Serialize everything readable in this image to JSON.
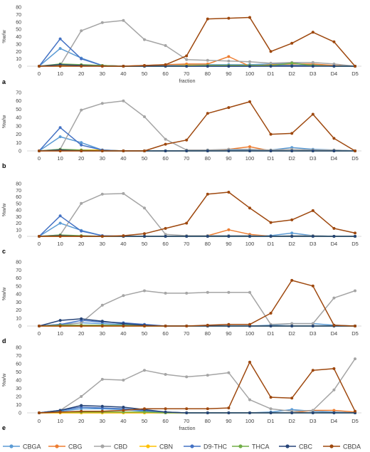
{
  "colors": {
    "CBGA": "#5b9bd5",
    "CBG": "#ed7d31",
    "CBD": "#a5a5a5",
    "CBN": "#ffc000",
    "D9-THC": "#4472c4",
    "THCA": "#70ad47",
    "CBC": "#264478",
    "CBDA": "#9e480e",
    "axis": "#d9d9d9",
    "text": "#404040"
  },
  "chart_data": [
    {
      "type": "line",
      "panel_label": "a",
      "xlabel": "fraction",
      "ylabel": "%w/w",
      "ylim": [
        0,
        80
      ],
      "yticks": [
        0,
        10,
        20,
        30,
        40,
        50,
        60,
        70,
        80
      ],
      "grid": false,
      "categories": [
        "0",
        "10",
        "20",
        "30",
        "40",
        "50",
        "60",
        "70",
        "80",
        "90",
        "100",
        "D1",
        "D2",
        "D3",
        "D4",
        "D5"
      ],
      "series": [
        {
          "name": "CBGA",
          "values": [
            0,
            24,
            11,
            1,
            0,
            0,
            1,
            2,
            2,
            2,
            2,
            3,
            4,
            2,
            1,
            0
          ]
        },
        {
          "name": "CBG",
          "values": [
            0,
            1,
            1,
            1,
            0,
            1,
            2,
            3,
            3,
            13,
            0,
            2,
            3,
            3,
            1,
            0
          ]
        },
        {
          "name": "CBD",
          "values": [
            0,
            1,
            48,
            59,
            62,
            36,
            28,
            9,
            8,
            7,
            6,
            4,
            5,
            5,
            3,
            0
          ]
        },
        {
          "name": "CBN",
          "values": [
            0,
            1,
            1,
            0,
            0,
            0,
            0,
            1,
            1,
            1,
            1,
            1,
            1,
            1,
            0,
            0
          ]
        },
        {
          "name": "D9-THC",
          "values": [
            0,
            37,
            10,
            1,
            0,
            0,
            0,
            0,
            0,
            0,
            0,
            1,
            1,
            1,
            0,
            0
          ]
        },
        {
          "name": "THCA",
          "values": [
            0,
            3,
            2,
            1,
            0,
            0,
            0,
            0,
            1,
            1,
            1,
            1,
            4,
            1,
            0,
            0
          ]
        },
        {
          "name": "CBC",
          "values": [
            0,
            2,
            1,
            0,
            0,
            0,
            0,
            0,
            0,
            0,
            0,
            0,
            0,
            0,
            0,
            0
          ]
        },
        {
          "name": "CBDA",
          "values": [
            0,
            0,
            0,
            0,
            0,
            1,
            2,
            14,
            64,
            65,
            66,
            20,
            31,
            46,
            33,
            0
          ]
        }
      ]
    },
    {
      "type": "line",
      "panel_label": "b",
      "ylabel": "%w/w",
      "ylim": [
        0,
        70
      ],
      "yticks": [
        0,
        10,
        20,
        30,
        40,
        50,
        60,
        70
      ],
      "grid": false,
      "categories": [
        "0",
        "10",
        "20",
        "30",
        "40",
        "50",
        "60",
        "70",
        "80",
        "90",
        "100",
        "D1",
        "D2",
        "D3",
        "D4",
        "D5"
      ],
      "series": [
        {
          "name": "CBGA",
          "values": [
            0,
            17,
            10,
            1,
            0,
            0,
            0,
            0,
            1,
            1,
            1,
            1,
            4,
            2,
            1,
            0
          ]
        },
        {
          "name": "CBG",
          "values": [
            0,
            0,
            0,
            0,
            0,
            0,
            0,
            0,
            0,
            2,
            5,
            0,
            0,
            0,
            0,
            0
          ]
        },
        {
          "name": "CBD",
          "values": [
            0,
            2,
            49,
            57,
            60,
            41,
            14,
            1,
            1,
            2,
            2,
            1,
            2,
            1,
            1,
            0
          ]
        },
        {
          "name": "CBN",
          "values": [
            0,
            1,
            1,
            1,
            0,
            0,
            0,
            0,
            0,
            0,
            0,
            0,
            0,
            0,
            0,
            0
          ]
        },
        {
          "name": "D9-THC",
          "values": [
            0,
            28,
            7,
            1,
            0,
            0,
            0,
            0,
            0,
            0,
            0,
            0,
            0,
            0,
            0,
            0
          ]
        },
        {
          "name": "THCA",
          "values": [
            0,
            2,
            1,
            0,
            0,
            0,
            0,
            0,
            0,
            0,
            0,
            0,
            0,
            0,
            0,
            0
          ]
        },
        {
          "name": "CBC",
          "values": [
            0,
            1,
            0,
            0,
            0,
            0,
            0,
            0,
            0,
            0,
            0,
            0,
            0,
            0,
            0,
            0
          ]
        },
        {
          "name": "CBDA",
          "values": [
            0,
            0,
            0,
            0,
            0,
            0,
            8,
            13,
            45,
            52,
            59,
            20,
            21,
            44,
            15,
            0
          ]
        }
      ]
    },
    {
      "type": "line",
      "panel_label": "c",
      "ylabel": "%w/w",
      "ylim": [
        0,
        80
      ],
      "yticks": [
        0,
        10,
        20,
        30,
        40,
        50,
        60,
        70,
        80
      ],
      "grid": false,
      "categories": [
        "0",
        "10",
        "20",
        "30",
        "40",
        "50",
        "60",
        "70",
        "80",
        "90",
        "100",
        "D1",
        "D2",
        "D3",
        "D4",
        "D5"
      ],
      "series": [
        {
          "name": "CBGA",
          "values": [
            0,
            20,
            9,
            1,
            0,
            0,
            0,
            0,
            1,
            1,
            1,
            1,
            5,
            1,
            0,
            0
          ]
        },
        {
          "name": "CBG",
          "values": [
            0,
            0,
            0,
            0,
            0,
            0,
            0,
            0,
            1,
            10,
            3,
            0,
            0,
            0,
            0,
            0
          ]
        },
        {
          "name": "CBD",
          "values": [
            0,
            2,
            50,
            64,
            65,
            43,
            3,
            1,
            1,
            1,
            1,
            0,
            1,
            1,
            0,
            0
          ]
        },
        {
          "name": "CBN",
          "values": [
            0,
            0,
            0,
            0,
            0,
            0,
            0,
            0,
            0,
            0,
            0,
            0,
            0,
            0,
            0,
            0
          ]
        },
        {
          "name": "D9-THC",
          "values": [
            0,
            31,
            8,
            1,
            0,
            0,
            0,
            0,
            0,
            0,
            0,
            0,
            0,
            0,
            0,
            0
          ]
        },
        {
          "name": "THCA",
          "values": [
            0,
            2,
            1,
            0,
            0,
            0,
            0,
            0,
            0,
            0,
            0,
            0,
            0,
            0,
            0,
            0
          ]
        },
        {
          "name": "CBC",
          "values": [
            0,
            1,
            0,
            0,
            0,
            0,
            0,
            0,
            0,
            0,
            0,
            0,
            0,
            0,
            0,
            0
          ]
        },
        {
          "name": "CBDA",
          "values": [
            0,
            0,
            0,
            0,
            1,
            4,
            12,
            20,
            64,
            67,
            43,
            21,
            25,
            39,
            12,
            5
          ]
        }
      ]
    },
    {
      "type": "line",
      "panel_label": "d",
      "ylabel": "%w/w",
      "ylim": [
        0,
        80
      ],
      "yticks": [
        0,
        10,
        20,
        30,
        40,
        50,
        60,
        70,
        80
      ],
      "grid": false,
      "categories": [
        "0",
        "10",
        "20",
        "30",
        "40",
        "50",
        "60",
        "70",
        "80",
        "90",
        "100",
        "D1",
        "D2",
        "D3",
        "D4",
        "D5"
      ],
      "series": [
        {
          "name": "CBGA",
          "values": [
            0,
            2,
            4,
            3,
            2,
            1,
            0,
            0,
            0,
            0,
            0,
            1,
            3,
            3,
            1,
            0
          ]
        },
        {
          "name": "CBG",
          "values": [
            0,
            0,
            0,
            0,
            0,
            0,
            0,
            0,
            0,
            0,
            0,
            0,
            0,
            0,
            0,
            0
          ]
        },
        {
          "name": "CBD",
          "values": [
            0,
            1,
            4,
            26,
            38,
            44,
            41,
            41,
            42,
            42,
            42,
            2,
            3,
            3,
            35,
            44
          ]
        },
        {
          "name": "CBN",
          "values": [
            0,
            0,
            0,
            0,
            0,
            0,
            0,
            0,
            0,
            0,
            0,
            0,
            0,
            0,
            0,
            0
          ]
        },
        {
          "name": "D9-THC",
          "values": [
            0,
            2,
            7,
            5,
            4,
            2,
            0,
            0,
            0,
            0,
            0,
            0,
            0,
            0,
            0,
            0
          ]
        },
        {
          "name": "THCA",
          "values": [
            0,
            1,
            1,
            1,
            1,
            0,
            0,
            0,
            0,
            0,
            0,
            0,
            0,
            0,
            0,
            0
          ]
        },
        {
          "name": "CBC",
          "values": [
            0,
            7,
            9,
            6,
            3,
            1,
            0,
            0,
            0,
            0,
            0,
            0,
            0,
            0,
            0,
            0
          ]
        },
        {
          "name": "CBDA",
          "values": [
            0,
            0,
            0,
            0,
            0,
            0,
            0,
            0,
            1,
            2,
            2,
            16,
            57,
            50,
            1,
            0
          ]
        }
      ]
    },
    {
      "type": "line",
      "panel_label": "e",
      "xlabel": "fraction",
      "ylabel": "%w/w",
      "ylim": [
        0,
        80
      ],
      "yticks": [
        0,
        10,
        20,
        30,
        40,
        50,
        60,
        70,
        80
      ],
      "grid": false,
      "categories": [
        "0",
        "10",
        "20",
        "30",
        "40",
        "50",
        "60",
        "70",
        "80",
        "90",
        "100",
        "D1",
        "D2",
        "D3",
        "D4",
        "D5"
      ],
      "series": [
        {
          "name": "CBGA",
          "values": [
            0,
            2,
            5,
            5,
            4,
            2,
            1,
            0,
            0,
            0,
            0,
            1,
            4,
            2,
            1,
            0
          ]
        },
        {
          "name": "CBG",
          "values": [
            0,
            0,
            0,
            0,
            0,
            0,
            0,
            0,
            0,
            0,
            0,
            0,
            0,
            3,
            3,
            1
          ]
        },
        {
          "name": "CBD",
          "values": [
            0,
            3,
            20,
            41,
            40,
            52,
            47,
            44,
            46,
            49,
            16,
            5,
            2,
            3,
            28,
            66
          ]
        },
        {
          "name": "CBN",
          "values": [
            0,
            0,
            0,
            0,
            0,
            0,
            0,
            0,
            0,
            0,
            0,
            0,
            0,
            0,
            0,
            0
          ]
        },
        {
          "name": "D9-THC",
          "values": [
            0,
            3,
            7,
            6,
            5,
            3,
            1,
            0,
            0,
            0,
            0,
            0,
            0,
            0,
            0,
            0
          ]
        },
        {
          "name": "THCA",
          "values": [
            0,
            1,
            1,
            1,
            1,
            1,
            0,
            0,
            0,
            0,
            0,
            0,
            0,
            0,
            0,
            0
          ]
        },
        {
          "name": "CBC",
          "values": [
            0,
            3,
            9,
            8,
            7,
            4,
            1,
            0,
            0,
            0,
            0,
            0,
            0,
            0,
            0,
            0
          ]
        },
        {
          "name": "CBDA",
          "values": [
            0,
            1,
            2,
            2,
            3,
            5,
            5,
            5,
            5,
            6,
            62,
            19,
            18,
            52,
            54,
            2
          ]
        }
      ]
    }
  ],
  "legend": {
    "placement": "bottom",
    "items": [
      "CBGA",
      "CBG",
      "CBD",
      "CBN",
      "D9-THC",
      "THCA",
      "CBC",
      "CBDA"
    ]
  }
}
